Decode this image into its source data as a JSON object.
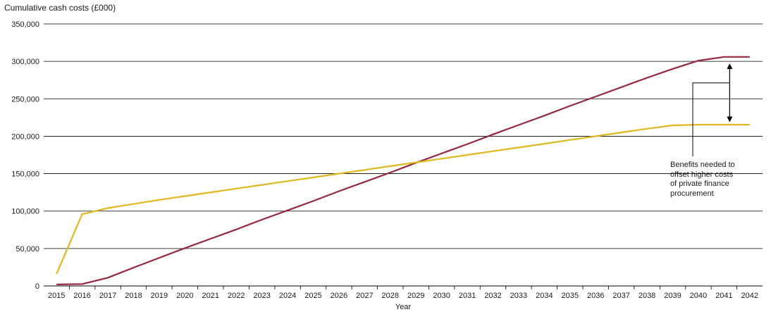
{
  "chart_data": {
    "type": "line",
    "title": "Cumulative cash costs (£000)",
    "xlabel": "Year",
    "ylabel": "",
    "ylim": [
      0,
      350000
    ],
    "yticks": [
      {
        "value": 0,
        "label": "0"
      },
      {
        "value": 50000,
        "label": "50,000"
      },
      {
        "value": 100000,
        "label": "100,000"
      },
      {
        "value": 150000,
        "label": "150,000"
      },
      {
        "value": 200000,
        "label": "200,000"
      },
      {
        "value": 250000,
        "label": "250,000"
      },
      {
        "value": 300000,
        "label": "300,000"
      },
      {
        "value": 350000,
        "label": "350,000"
      }
    ],
    "categories": [
      "2015",
      "2016",
      "2017",
      "2018",
      "2019",
      "2020",
      "2021",
      "2022",
      "2023",
      "2024",
      "2025",
      "2026",
      "2027",
      "2028",
      "2029",
      "2030",
      "2031",
      "2032",
      "2033",
      "2034",
      "2035",
      "2036",
      "2037",
      "2038",
      "2039",
      "2040",
      "2041",
      "2042"
    ],
    "grid": true,
    "series": [
      {
        "color": "#97263f",
        "values": [
          2000,
          2500,
          11000,
          24500,
          37500,
          50500,
          63000,
          75500,
          88500,
          101000,
          113500,
          126500,
          139000,
          151500,
          164500,
          177000,
          189500,
          202500,
          215000,
          227500,
          240500,
          253000,
          265500,
          278000,
          290000,
          301000,
          306000,
          306000
        ]
      },
      {
        "color": "#e0b81e",
        "values": [
          16000,
          96000,
          104000,
          109500,
          115000,
          120000,
          125000,
          130000,
          135000,
          140000,
          145000,
          150000,
          155000,
          160000,
          165000,
          170000,
          175000,
          180000,
          185000,
          190000,
          195000,
          200000,
          205000,
          210000,
          214500,
          215500,
          215500,
          215500
        ]
      }
    ],
    "annotation": {
      "lines": [
        "Benefits needed to",
        "offset higher costs",
        "of private finance",
        "procurement"
      ],
      "arrow_year": "2041",
      "arrow_from": 215000,
      "arrow_to": 301000
    }
  }
}
